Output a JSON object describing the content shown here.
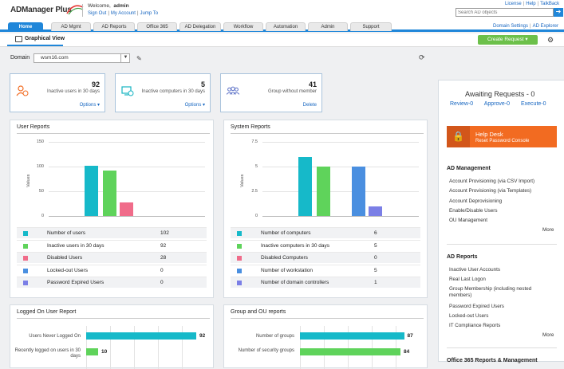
{
  "app": {
    "logo": "ADManager Plus",
    "welcome_prefix": "Welcome,",
    "user": "admin",
    "links": [
      "Sign Out",
      "My Account",
      "Jump To"
    ]
  },
  "top_links": [
    "License",
    "Help",
    "TalkBack"
  ],
  "search": {
    "placeholder": "Search AD objects",
    "value": "Search AD objects"
  },
  "tabs": [
    "Home",
    "AD Mgmt",
    "AD Reports",
    "Office 365",
    "AD Delegation",
    "Workflow",
    "Automation",
    "Admin",
    "Support"
  ],
  "active_tab": "Home",
  "sub_links": [
    "Domain Settings",
    "AD Explorer"
  ],
  "view": {
    "title": "Graphical View",
    "create_request": "Create Request"
  },
  "domain": {
    "label": "Domain",
    "value": "wsm16.com"
  },
  "stats": [
    {
      "value": "92",
      "label": "Inactive users in 30 days",
      "link": "Options ▾",
      "icon": "user-clock-icon",
      "color": "#f26b21"
    },
    {
      "value": "5",
      "label": "Inactive computers in 30 days",
      "link": "Options ▾",
      "icon": "computer-clock-icon",
      "color": "#16b3c2"
    },
    {
      "value": "41",
      "label": "Group without member",
      "link": "Delete",
      "icon": "group-icon",
      "color": "#5a6fc6"
    }
  ],
  "user_reports": {
    "title": "User Reports",
    "chart_data": {
      "type": "bar",
      "ylabel": "Values",
      "yticks": [
        "150",
        "100",
        "50",
        "0"
      ],
      "ylim": [
        0,
        150
      ],
      "categories": [
        "Number of users",
        "Inactive users in 30 days",
        "Disabled Users",
        "Locked-out Users",
        "Password Expired Users"
      ],
      "values": [
        102,
        92,
        28,
        0,
        0
      ],
      "colors": [
        "#16b9c9",
        "#5fd35b",
        "#f06c8a",
        "#4a8fe0",
        "#7b7fe6"
      ]
    }
  },
  "system_reports": {
    "title": "System Reports",
    "chart_data": {
      "type": "bar",
      "ylabel": "Values",
      "yticks": [
        "7.5",
        "5",
        "2.5",
        "0"
      ],
      "ylim": [
        0,
        7.5
      ],
      "categories": [
        "Number of computers",
        "Inactive computers in 30 days",
        "Disabled Computers",
        "Number of workstation",
        "Number of domain controllers"
      ],
      "values": [
        6,
        5,
        0,
        5,
        1
      ],
      "colors": [
        "#16b9c9",
        "#5fd35b",
        "#f06c8a",
        "#4a8fe0",
        "#7b7fe6"
      ]
    }
  },
  "logon_report": {
    "title": "Logged On User Report",
    "chart_data": {
      "type": "bar",
      "categories": [
        "Users Never Logged On",
        "Recently logged on users in 30 days"
      ],
      "values": [
        92,
        10
      ],
      "xlim": [
        0,
        100
      ],
      "colors": [
        "#16b9c9",
        "#5fd35b"
      ]
    }
  },
  "group_ou_report": {
    "title": "Group and OU reports",
    "chart_data": {
      "type": "bar",
      "categories": [
        "Number of groups",
        "Number of security groups"
      ],
      "values": [
        87,
        84
      ],
      "xlim": [
        0,
        100
      ],
      "colors": [
        "#16b9c9",
        "#5fd35b"
      ]
    }
  },
  "right_panel": {
    "awaiting": "Awaiting Requests - 0",
    "review": "Review-0",
    "approve": "Approve-0",
    "execute": "Execute-0",
    "helpdesk_title": "Help Desk",
    "helpdesk_sub": "Reset Password Console",
    "ad_mgmt_title": "AD Management",
    "ad_mgmt_items": [
      "Account Provisioning (via CSV Import)",
      "Account Provisioning (via Templates)",
      "Account Deprovisioning",
      "Enable/Disable Users",
      "OU Management"
    ],
    "ad_reports_title": "AD Reports",
    "ad_reports_items": [
      "Inactive User Accounts",
      "Real Last Logon",
      "Group Membership (including nested members)",
      "Password Expired Users",
      "Locked-out Users",
      "IT Compliance Reports"
    ],
    "more": "More",
    "o365_title": "Office 365 Reports & Management"
  }
}
